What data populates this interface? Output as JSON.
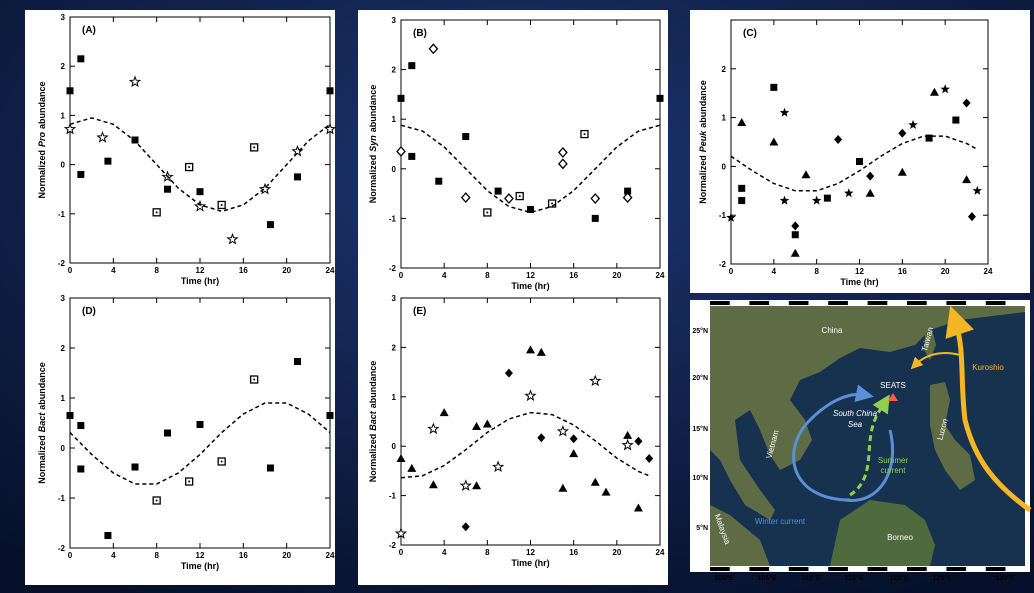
{
  "chart_data": [
    {
      "type": "scatter",
      "panel_label": "(A)",
      "y_label": [
        "Normalized",
        "Pro",
        "abundance"
      ],
      "x_label": "Time (hr)",
      "xlim": [
        0,
        24
      ],
      "xticks": [
        0,
        4,
        8,
        12,
        16,
        20,
        24
      ],
      "ylim": [
        -2,
        3
      ],
      "yticks": [
        -2,
        -1,
        0,
        1,
        2,
        3
      ],
      "series": [
        {
          "marker": "square",
          "color": "#000000",
          "x": [
            0,
            1,
            1,
            3.5,
            6,
            9,
            12,
            18.5,
            21,
            24
          ],
          "values": [
            1.5,
            2.15,
            -0.2,
            0.07,
            0.5,
            -0.5,
            -0.55,
            -1.22,
            -0.25,
            1.5
          ]
        },
        {
          "marker": "square-dot",
          "color": "#000000",
          "x": [
            8,
            11,
            14,
            17
          ],
          "values": [
            -0.97,
            -0.05,
            -0.82,
            0.35
          ]
        },
        {
          "marker": "star-open",
          "color": "#000000",
          "x": [
            0,
            3,
            6,
            9,
            12,
            15,
            18,
            21,
            24
          ],
          "values": [
            0.72,
            0.55,
            1.68,
            -0.25,
            -0.85,
            -1.52,
            -0.5,
            0.27,
            0.72
          ]
        },
        {
          "marker": "dashed-line",
          "color": "#000000",
          "x": [
            0,
            2,
            4,
            6,
            8,
            10,
            12,
            14,
            16,
            18,
            20,
            22,
            24
          ],
          "values": [
            0.82,
            0.95,
            0.82,
            0.48,
            0,
            -0.48,
            -0.82,
            -0.95,
            -0.82,
            -0.48,
            0,
            0.48,
            0.82
          ]
        }
      ]
    },
    {
      "type": "scatter",
      "panel_label": "(B)",
      "y_label": [
        "Normalized",
        "Syn",
        "abundance"
      ],
      "x_label": "Time (hr)",
      "xlim": [
        0,
        24
      ],
      "xticks": [
        0,
        4,
        8,
        12,
        16,
        20,
        24
      ],
      "ylim": [
        -2,
        3
      ],
      "yticks": [
        -2,
        -1,
        0,
        1,
        2,
        3
      ],
      "series": [
        {
          "marker": "square",
          "color": "#000000",
          "x": [
            0,
            1,
            1,
            3.5,
            6,
            9,
            12,
            18,
            21,
            24
          ],
          "values": [
            1.42,
            2.08,
            0.25,
            -0.25,
            0.65,
            -0.45,
            -0.82,
            -1.0,
            -0.45,
            1.42
          ]
        },
        {
          "marker": "square-dot",
          "color": "#000000",
          "x": [
            8,
            11,
            14,
            17
          ],
          "values": [
            -0.88,
            -0.55,
            -0.7,
            0.7
          ]
        },
        {
          "marker": "diamond-open",
          "color": "#000000",
          "x": [
            0,
            3,
            6,
            10,
            15,
            15,
            18,
            21
          ],
          "values": [
            0.35,
            2.42,
            -0.58,
            -0.6,
            0.33,
            0.1,
            -0.6,
            -0.58
          ]
        },
        {
          "marker": "dashed-line",
          "color": "#000000",
          "x": [
            0,
            2,
            4,
            6,
            8,
            10,
            12,
            14,
            16,
            18,
            20,
            22,
            24
          ],
          "values": [
            0.88,
            0.76,
            0.44,
            0,
            -0.44,
            -0.76,
            -0.88,
            -0.76,
            -0.44,
            0,
            0.44,
            0.76,
            0.88
          ]
        }
      ]
    },
    {
      "type": "scatter",
      "panel_label": "(C)",
      "y_label": [
        "Normalized",
        "Peuk",
        "abundance"
      ],
      "x_label": "Time (hr)",
      "xlim": [
        0,
        24
      ],
      "xticks": [
        0,
        4,
        8,
        12,
        16,
        20,
        24
      ],
      "ylim": [
        -2,
        3
      ],
      "yticks": [
        -2,
        -1,
        0,
        1,
        2
      ],
      "series": [
        {
          "marker": "square",
          "color": "#000000",
          "x": [
            1,
            1,
            4,
            6,
            9,
            12,
            18.5,
            21
          ],
          "values": [
            -0.45,
            -0.7,
            1.62,
            -1.4,
            -0.65,
            0.1,
            0.58,
            0.95
          ]
        },
        {
          "marker": "triangle",
          "color": "#000000",
          "x": [
            1,
            4,
            6,
            7,
            13,
            16,
            19,
            22
          ],
          "values": [
            0.9,
            0.5,
            -1.78,
            -0.17,
            -0.55,
            -0.12,
            1.52,
            -0.27
          ]
        },
        {
          "marker": "star",
          "color": "#000000",
          "x": [
            0,
            5,
            5,
            8,
            11,
            17,
            20,
            23
          ],
          "values": [
            -1.05,
            1.1,
            -0.7,
            -0.7,
            -0.55,
            0.85,
            1.58,
            -0.5
          ]
        },
        {
          "marker": "diamond",
          "color": "#000000",
          "x": [
            6,
            10,
            13,
            16,
            22,
            22.5
          ],
          "values": [
            -1.22,
            0.55,
            -0.2,
            0.68,
            1.3,
            -1.03
          ]
        },
        {
          "marker": "dashed-line",
          "color": "#000000",
          "x": [
            0,
            2,
            4,
            6,
            8,
            10,
            12,
            14,
            16,
            18,
            20,
            22,
            23
          ],
          "values": [
            0.21,
            -0.09,
            -0.35,
            -0.5,
            -0.5,
            -0.35,
            -0.09,
            0.21,
            0.47,
            0.62,
            0.62,
            0.47,
            0.35
          ]
        }
      ]
    },
    {
      "type": "scatter",
      "panel_label": "(D)",
      "y_label": [
        "Normalized",
        "Bact",
        "abundance"
      ],
      "x_label": "Time (hr)",
      "xlim": [
        0,
        24
      ],
      "xticks": [
        0,
        4,
        8,
        12,
        16,
        20,
        24
      ],
      "ylim": [
        -2,
        3
      ],
      "yticks": [
        -2,
        -1,
        0,
        1,
        2,
        3
      ],
      "series": [
        {
          "marker": "square",
          "color": "#000000",
          "x": [
            0,
            1,
            1,
            3.5,
            6,
            9,
            12,
            18.5,
            21,
            24
          ],
          "values": [
            0.65,
            0.45,
            -0.42,
            -1.75,
            -0.38,
            0.3,
            0.47,
            -0.4,
            1.73,
            0.65
          ]
        },
        {
          "marker": "square-dot",
          "color": "#000000",
          "x": [
            8,
            11,
            14,
            17
          ],
          "values": [
            -1.05,
            -0.67,
            -0.27,
            1.37
          ]
        },
        {
          "marker": "dashed-line",
          "color": "#000000",
          "x": [
            0,
            2,
            4,
            6,
            8,
            10,
            12,
            14,
            16,
            18,
            20,
            22,
            24
          ],
          "values": [
            0.31,
            -0.13,
            -0.5,
            -0.72,
            -0.72,
            -0.5,
            -0.13,
            0.31,
            0.68,
            0.9,
            0.9,
            0.68,
            0.31
          ]
        }
      ]
    },
    {
      "type": "scatter",
      "panel_label": "(E)",
      "y_label": [
        "Normalized",
        "Bact",
        "abundance"
      ],
      "x_label": "Time (hr)",
      "xlim": [
        0,
        24
      ],
      "xticks": [
        0,
        4,
        8,
        12,
        16,
        20,
        24
      ],
      "ylim": [
        -2,
        3
      ],
      "yticks": [
        -2,
        -1,
        0,
        1,
        2,
        3
      ],
      "series": [
        {
          "marker": "triangle",
          "color": "#000000",
          "x": [
            0,
            1,
            3,
            4,
            7,
            7,
            8,
            12,
            13,
            15,
            16,
            18,
            19,
            21,
            22
          ],
          "values": [
            -0.25,
            -0.45,
            -0.78,
            0.68,
            0.4,
            -0.8,
            0.45,
            1.95,
            1.9,
            -0.85,
            -0.15,
            -0.73,
            -0.93,
            0.22,
            -1.25
          ]
        },
        {
          "marker": "star-open",
          "color": "#000000",
          "x": [
            0,
            3,
            6,
            9,
            12,
            15,
            18,
            21
          ],
          "values": [
            -1.77,
            0.35,
            -0.8,
            -0.42,
            1.02,
            0.3,
            1.32,
            0.02
          ]
        },
        {
          "marker": "diamond",
          "color": "#000000",
          "x": [
            6,
            10,
            13,
            16,
            22,
            23
          ],
          "values": [
            -1.63,
            1.48,
            0.17,
            0.15,
            0.1,
            -0.25
          ]
        },
        {
          "marker": "dashed-line",
          "color": "#000000",
          "x": [
            0,
            2,
            4,
            6,
            8,
            10,
            12,
            14,
            16,
            18,
            20,
            22,
            23
          ],
          "values": [
            -0.64,
            -0.6,
            -0.39,
            -0.07,
            0.28,
            0.55,
            0.68,
            0.64,
            0.43,
            0.11,
            -0.24,
            -0.51,
            -0.6
          ]
        }
      ]
    }
  ],
  "map": {
    "lat_labels": [
      "25°N",
      "20°N",
      "15°N",
      "10°N",
      "5°N"
    ],
    "lon_labels": [
      "100°E",
      "105°E",
      "110°E",
      "115°E",
      "120°E",
      "125°E",
      "130°E"
    ],
    "labels": {
      "china": "China",
      "taiwan": "Taiwan",
      "kuroshio": "Kuroshio",
      "seats": "SEATS",
      "sea": [
        "South China",
        "Sea"
      ],
      "vietnam": "Vietnam",
      "luzon": "Luzon",
      "summer": [
        "Summer",
        "current"
      ],
      "winter": "Winter current",
      "malaysia": "Malaysia",
      "borneo": "Borneo"
    }
  }
}
